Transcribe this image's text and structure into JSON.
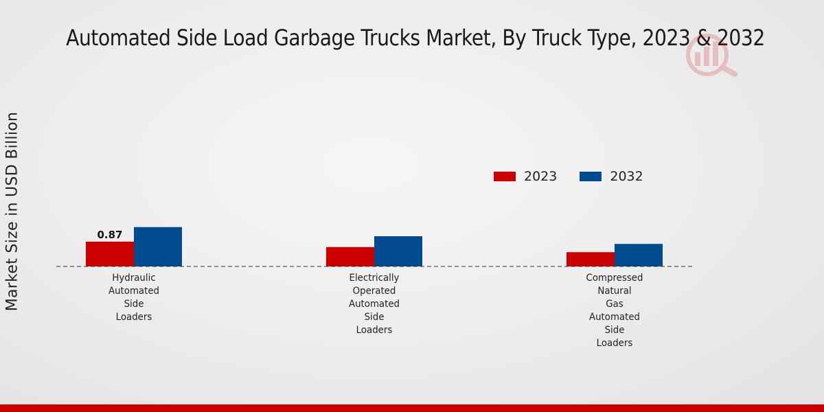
{
  "chart_data": {
    "type": "bar",
    "title": "Automated Side Load Garbage Trucks Market, By Truck Type, 2023 & 2032",
    "xlabel": "",
    "ylabel": "Market Size in USD Billion",
    "categories": [
      "Hydraulic\nAutomated\nSide\nLoaders",
      "Electrically\nOperated\nAutomated\nSide\nLoaders",
      "Compressed\nNatural\nGas\nAutomated\nSide\nLoaders"
    ],
    "series": [
      {
        "name": "2023",
        "color": "#cc0000",
        "values": [
          0.87,
          0.68,
          0.5
        ]
      },
      {
        "name": "2032",
        "color": "#004a8f",
        "values": [
          1.38,
          1.06,
          0.79
        ]
      }
    ],
    "data_labels": [
      {
        "series": "2023",
        "category_index": 0,
        "text": "0.87"
      }
    ],
    "ylim": [
      0,
      8
    ],
    "legend_position": "right"
  }
}
